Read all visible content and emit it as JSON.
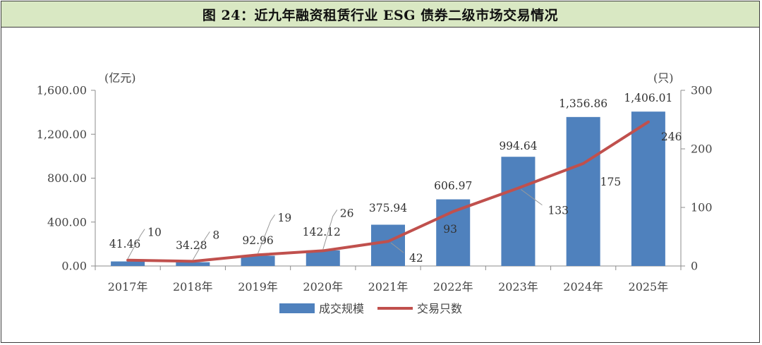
{
  "title": "图 24：近九年融资租赁行业 ESG 债券二级市场交易情况",
  "chart_data": {
    "type": "bar",
    "categories": [
      "2017年",
      "2018年",
      "2019年",
      "2020年",
      "2021年",
      "2022年",
      "2023年",
      "2024年",
      "2025年"
    ],
    "series": [
      {
        "name": "成交规模",
        "type": "bar",
        "axis": "left",
        "color": "#4f81bd",
        "values": [
          41.46,
          34.28,
          92.96,
          142.12,
          375.94,
          606.97,
          994.64,
          1356.86,
          1406.01
        ],
        "labels": [
          "41.46",
          "34.28",
          "92.96",
          "142.12",
          "375.94",
          "606.97",
          "994.64",
          "1,356.86",
          "1,406.01"
        ]
      },
      {
        "name": "交易只数",
        "type": "line",
        "axis": "right",
        "color": "#c0504d",
        "values": [
          10,
          8,
          19,
          26,
          42,
          93,
          133,
          175,
          246
        ],
        "labels": [
          "10",
          "8",
          "19",
          "26",
          "42",
          "93",
          "133",
          "175",
          "246"
        ]
      }
    ],
    "y_left": {
      "unit": "(亿元)",
      "ylim": [
        0,
        1600
      ],
      "ticks": [
        0,
        400,
        800,
        1200,
        1600
      ],
      "tick_labels": [
        "0.00",
        "400.00",
        "800.00",
        "1,200.00",
        "1,600.00"
      ]
    },
    "y_right": {
      "unit": "(只)",
      "ylim": [
        0,
        300
      ],
      "ticks": [
        0,
        100,
        200,
        300
      ],
      "tick_labels": [
        "0",
        "100",
        "200",
        "300"
      ]
    },
    "grid": false,
    "legend": "bottom-center"
  }
}
